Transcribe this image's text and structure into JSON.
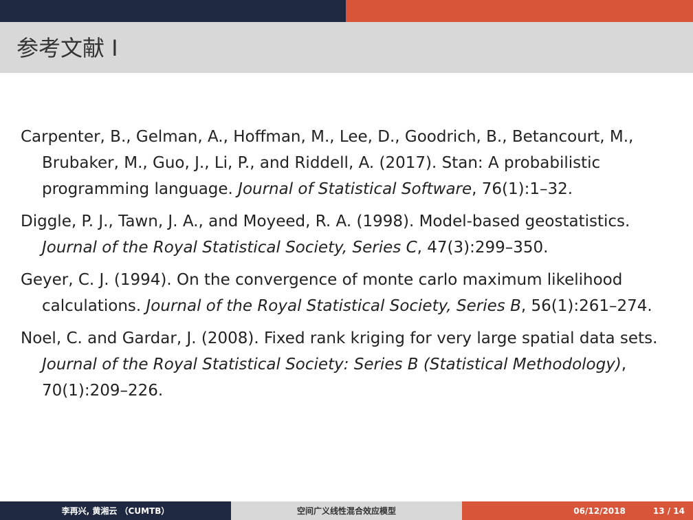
{
  "slide": {
    "title": "参考文献 I"
  },
  "references": [
    {
      "authors": "Carpenter, B., Gelman, A., Hoffman, M., Lee, D., Goodrich, B., Betancourt, M., Brubaker, M., Guo, J., Li, P., and Riddell, A. (2017).",
      "title": "Stan: A probabilistic programming language.",
      "journal": "Journal of Statistical Software",
      "details": ", 76(1):1–32."
    },
    {
      "authors": "Diggle, P. J., Tawn, J. A., and Moyeed, R. A. (1998).",
      "title": "Model-based geostatistics.",
      "journal": "Journal of the Royal Statistical Society, Series C",
      "details": ", 47(3):299–350."
    },
    {
      "authors": "Geyer, C. J. (1994).",
      "title": "On the convergence of monte carlo maximum likelihood calculations.",
      "journal": "Journal of the Royal Statistical Society, Series B",
      "details": ", 56(1):261–274."
    },
    {
      "authors": "Noel, C. and Gardar, J. (2008).",
      "title": "Fixed rank kriging for very large spatial data sets.",
      "journal": "Journal of the Royal Statistical Society: Series B (Statistical Methodology)",
      "details": ", 70(1):209–226."
    }
  ],
  "footer": {
    "author": "李再兴, 黄湘云 （CUMTB）",
    "talk_title": "空间广义线性混合效应模型",
    "date": "06/12/2018",
    "page": "13 / 14"
  },
  "colors": {
    "navy": "#1e2840",
    "orange": "#d9553a",
    "gray": "#d8d8d8"
  }
}
